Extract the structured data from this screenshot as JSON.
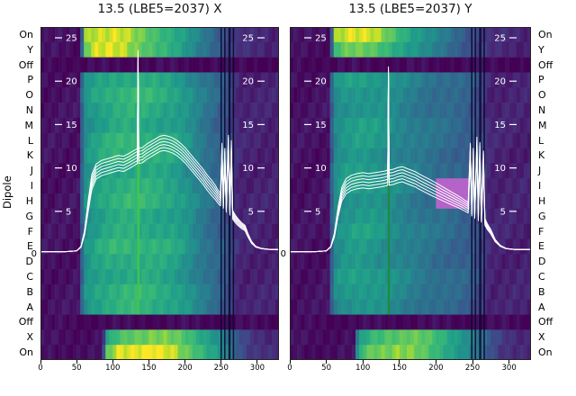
{
  "figure": {
    "ylabel": "Dipole",
    "background": "#ffffff"
  },
  "colormap": {
    "name": "viridis",
    "anchors": [
      [
        0,
        "#440154"
      ],
      [
        0.125,
        "#482878"
      ],
      [
        0.25,
        "#3e4a89"
      ],
      [
        0.375,
        "#31688e"
      ],
      [
        0.5,
        "#26828e"
      ],
      [
        0.625,
        "#1f9e89"
      ],
      [
        0.75,
        "#35b779"
      ],
      [
        0.875,
        "#6dcd59"
      ],
      [
        0.94,
        "#b4de2c"
      ],
      [
        1,
        "#fde725"
      ]
    ]
  },
  "profiles": {
    "off": [
      [
        0,
        0.02
      ],
      [
        330,
        0.02
      ]
    ],
    "body_l": [
      [
        0,
        0.05
      ],
      [
        54,
        0.05
      ],
      [
        58,
        0.4
      ],
      [
        63,
        0.58
      ],
      [
        80,
        0.65
      ],
      [
        100,
        0.7
      ],
      [
        125,
        0.72
      ],
      [
        155,
        0.7
      ],
      [
        185,
        0.65
      ],
      [
        205,
        0.57
      ],
      [
        220,
        0.48
      ],
      [
        235,
        0.41
      ],
      [
        248,
        0.35
      ],
      [
        258,
        0.3
      ],
      [
        264,
        0.22
      ],
      [
        270,
        0.15
      ],
      [
        278,
        0.11
      ],
      [
        330,
        0.1
      ]
    ],
    "body_r": [
      [
        0,
        0.05
      ],
      [
        54,
        0.05
      ],
      [
        58,
        0.38
      ],
      [
        63,
        0.55
      ],
      [
        78,
        0.6
      ],
      [
        95,
        0.62
      ],
      [
        115,
        0.6
      ],
      [
        135,
        0.56
      ],
      [
        155,
        0.51
      ],
      [
        175,
        0.46
      ],
      [
        195,
        0.42
      ],
      [
        215,
        0.39
      ],
      [
        235,
        0.36
      ],
      [
        250,
        0.32
      ],
      [
        260,
        0.25
      ],
      [
        268,
        0.16
      ],
      [
        276,
        0.11
      ],
      [
        330,
        0.1
      ]
    ],
    "on_top_l": [
      [
        0,
        0.04
      ],
      [
        56,
        0.04
      ],
      [
        60,
        0.9
      ],
      [
        70,
        0.97
      ],
      [
        110,
        0.95
      ],
      [
        140,
        0.88
      ],
      [
        165,
        0.78
      ],
      [
        185,
        0.68
      ],
      [
        205,
        0.58
      ],
      [
        225,
        0.48
      ],
      [
        242,
        0.38
      ],
      [
        255,
        0.28
      ],
      [
        265,
        0.2
      ],
      [
        275,
        0.13
      ],
      [
        330,
        0.11
      ]
    ],
    "y_top_l": [
      [
        0,
        0.04
      ],
      [
        56,
        0.04
      ],
      [
        60,
        0.84
      ],
      [
        75,
        0.92
      ],
      [
        115,
        0.9
      ],
      [
        145,
        0.81
      ],
      [
        170,
        0.71
      ],
      [
        190,
        0.61
      ],
      [
        210,
        0.51
      ],
      [
        230,
        0.42
      ],
      [
        247,
        0.32
      ],
      [
        260,
        0.22
      ],
      [
        272,
        0.14
      ],
      [
        330,
        0.11
      ]
    ],
    "x_bot_l": [
      [
        0,
        0.04
      ],
      [
        86,
        0.04
      ],
      [
        92,
        0.6
      ],
      [
        105,
        0.75
      ],
      [
        130,
        0.85
      ],
      [
        160,
        0.88
      ],
      [
        190,
        0.82
      ],
      [
        215,
        0.72
      ],
      [
        240,
        0.6
      ],
      [
        258,
        0.45
      ],
      [
        270,
        0.3
      ],
      [
        285,
        0.2
      ],
      [
        300,
        0.15
      ],
      [
        330,
        0.12
      ]
    ],
    "on_bot_l": [
      [
        0,
        0.04
      ],
      [
        86,
        0.04
      ],
      [
        92,
        0.8
      ],
      [
        110,
        0.95
      ],
      [
        150,
        0.97
      ],
      [
        185,
        0.9
      ],
      [
        215,
        0.78
      ],
      [
        240,
        0.62
      ],
      [
        258,
        0.48
      ],
      [
        270,
        0.32
      ],
      [
        285,
        0.2
      ],
      [
        330,
        0.14
      ]
    ],
    "on_top_r": [
      [
        0,
        0.04
      ],
      [
        56,
        0.04
      ],
      [
        60,
        0.88
      ],
      [
        78,
        0.95
      ],
      [
        115,
        0.9
      ],
      [
        140,
        0.8
      ],
      [
        160,
        0.68
      ],
      [
        180,
        0.57
      ],
      [
        200,
        0.48
      ],
      [
        222,
        0.4
      ],
      [
        240,
        0.32
      ],
      [
        255,
        0.24
      ],
      [
        268,
        0.16
      ],
      [
        278,
        0.12
      ],
      [
        330,
        0.11
      ]
    ],
    "y_top_r": [
      [
        0,
        0.04
      ],
      [
        56,
        0.04
      ],
      [
        60,
        0.82
      ],
      [
        80,
        0.9
      ],
      [
        118,
        0.85
      ],
      [
        145,
        0.74
      ],
      [
        168,
        0.62
      ],
      [
        190,
        0.52
      ],
      [
        212,
        0.44
      ],
      [
        232,
        0.36
      ],
      [
        250,
        0.28
      ],
      [
        264,
        0.2
      ],
      [
        276,
        0.13
      ],
      [
        330,
        0.11
      ]
    ],
    "x_bot_r": [
      [
        0,
        0.04
      ],
      [
        88,
        0.04
      ],
      [
        94,
        0.55
      ],
      [
        110,
        0.7
      ],
      [
        135,
        0.8
      ],
      [
        165,
        0.83
      ],
      [
        195,
        0.76
      ],
      [
        220,
        0.66
      ],
      [
        245,
        0.54
      ],
      [
        262,
        0.4
      ],
      [
        275,
        0.27
      ],
      [
        290,
        0.18
      ],
      [
        310,
        0.14
      ],
      [
        330,
        0.12
      ]
    ],
    "on_bot_r": [
      [
        0,
        0.04
      ],
      [
        88,
        0.04
      ],
      [
        94,
        0.75
      ],
      [
        112,
        0.92
      ],
      [
        150,
        0.95
      ],
      [
        185,
        0.86
      ],
      [
        215,
        0.73
      ],
      [
        240,
        0.58
      ],
      [
        258,
        0.44
      ],
      [
        272,
        0.3
      ],
      [
        288,
        0.19
      ],
      [
        330,
        0.13
      ]
    ]
  },
  "chart_data": [
    {
      "type": "heatmap",
      "title": "13.5 (LBE5=2037) X",
      "x_range": [
        0,
        330
      ],
      "x_ticks": [
        0,
        50,
        100,
        150,
        200,
        250,
        300
      ],
      "rows": [
        "On",
        "Y",
        "Off",
        "P",
        "O",
        "N",
        "M",
        "L",
        "K",
        "J",
        "I",
        "H",
        "G",
        "F",
        "E",
        "D",
        "C",
        "B",
        "A",
        "Off",
        "X",
        "On"
      ],
      "row_profiles": [
        "on_top_l",
        "y_top_l",
        "off",
        "body_l",
        "body_l",
        "body_l",
        "body_l",
        "body_l",
        "body_l",
        "body_l",
        "body_l",
        "body_l",
        "body_l",
        "body_l",
        "body_l",
        "body_l",
        "body_l",
        "body_l",
        "body_l",
        "off",
        "x_bot_l",
        "on_bot_l"
      ],
      "dark_stripes": [
        [
          249,
          2
        ],
        [
          254,
          2
        ],
        [
          260,
          3
        ],
        [
          266,
          2
        ]
      ],
      "overrides": [
        {
          "rows": [
            7,
            18
          ],
          "x": [
            134,
            137
          ],
          "color": "#3fc54f"
        }
      ],
      "overlay": {
        "y_range": [
          0,
          25
        ],
        "y_ticks_left": [
          25,
          20,
          15,
          10,
          5
        ],
        "y_ticks_right": [
          25,
          20,
          15,
          10,
          5
        ],
        "y_zero_label": "0",
        "trace_color": "#ffffff",
        "trace_offsets": [
          0,
          0.35,
          -0.35,
          0.7,
          -0.7,
          1.05
        ],
        "trace": [
          [
            0,
            0.35
          ],
          [
            35,
            0.35
          ],
          [
            50,
            0.45
          ],
          [
            56,
            0.9
          ],
          [
            61,
            2.5
          ],
          [
            66,
            5.5
          ],
          [
            71,
            8.2
          ],
          [
            77,
            9.4
          ],
          [
            84,
            9.8
          ],
          [
            92,
            10.0
          ],
          [
            100,
            10.2
          ],
          [
            108,
            10.4
          ],
          [
            115,
            10.3
          ],
          [
            122,
            10.6
          ],
          [
            128,
            10.9
          ],
          [
            132,
            11.1
          ],
          [
            134,
            11.2
          ],
          [
            135,
            22.5
          ],
          [
            136,
            11.2
          ],
          [
            141,
            11.3
          ],
          [
            147,
            11.7
          ],
          [
            153,
            12.0
          ],
          [
            159,
            12.3
          ],
          [
            165,
            12.6
          ],
          [
            171,
            12.7
          ],
          [
            177,
            12.6
          ],
          [
            183,
            12.4
          ],
          [
            189,
            12.1
          ],
          [
            195,
            11.7
          ],
          [
            201,
            11.2
          ],
          [
            207,
            10.6
          ],
          [
            213,
            10.0
          ],
          [
            219,
            9.4
          ],
          [
            225,
            8.8
          ],
          [
            231,
            8.1
          ],
          [
            237,
            7.5
          ],
          [
            242,
            7.0
          ],
          [
            246,
            6.5
          ],
          [
            249,
            6.2
          ],
          [
            251,
            11.8
          ],
          [
            253,
            5.9
          ],
          [
            255,
            11.2
          ],
          [
            257,
            5.4
          ],
          [
            260,
            12.7
          ],
          [
            262,
            5.0
          ],
          [
            264,
            12.1
          ],
          [
            266,
            4.5
          ],
          [
            269,
            4.1
          ],
          [
            273,
            3.7
          ],
          [
            278,
            3.3
          ],
          [
            283,
            3.0
          ],
          [
            287,
            2.2
          ],
          [
            292,
            1.4
          ],
          [
            298,
            0.9
          ],
          [
            306,
            0.7
          ],
          [
            318,
            0.6
          ],
          [
            330,
            0.6
          ]
        ]
      }
    },
    {
      "type": "heatmap",
      "title": "13.5 (LBE5=2037) Y",
      "x_range": [
        0,
        330
      ],
      "x_ticks": [
        0,
        50,
        100,
        150,
        200,
        250,
        300
      ],
      "rows": [
        "On",
        "Y",
        "Off",
        "P",
        "O",
        "N",
        "M",
        "L",
        "K",
        "J",
        "I",
        "H",
        "G",
        "F",
        "E",
        "D",
        "C",
        "B",
        "A",
        "Off",
        "X",
        "On"
      ],
      "row_profiles": [
        "on_top_r",
        "y_top_r",
        "off",
        "body_r",
        "body_r",
        "body_r",
        "body_r",
        "body_r",
        "body_r",
        "body_r",
        "body_r",
        "body_r",
        "body_r",
        "body_r",
        "body_r",
        "body_r",
        "body_r",
        "body_r",
        "body_r",
        "off",
        "x_bot_r",
        "on_bot_r"
      ],
      "dark_stripes": [
        [
          248,
          2
        ],
        [
          253,
          2
        ],
        [
          259,
          3
        ],
        [
          265,
          2
        ]
      ],
      "overrides": [
        {
          "rows": [
            10,
            18
          ],
          "x": [
            134,
            137
          ],
          "color": "#1e8a44"
        },
        {
          "rows": [
            10,
            11
          ],
          "x": [
            200,
            246
          ],
          "color": "#b464c8"
        }
      ],
      "overlay": {
        "y_range": [
          0,
          25
        ],
        "y_ticks_left": [
          25,
          20,
          15,
          10,
          5
        ],
        "y_ticks_right": [
          25,
          20,
          15,
          10,
          5
        ],
        "y_zero_label": "0",
        "trace_color": "#ffffff",
        "trace_offsets": [
          0,
          0.35,
          -0.35,
          0.7,
          -0.7,
          1.05
        ],
        "trace": [
          [
            0,
            0.35
          ],
          [
            35,
            0.35
          ],
          [
            50,
            0.45
          ],
          [
            56,
            0.9
          ],
          [
            61,
            2.2
          ],
          [
            66,
            4.8
          ],
          [
            71,
            6.8
          ],
          [
            77,
            7.7
          ],
          [
            84,
            8.1
          ],
          [
            92,
            8.3
          ],
          [
            100,
            8.4
          ],
          [
            108,
            8.3
          ],
          [
            116,
            8.4
          ],
          [
            124,
            8.5
          ],
          [
            130,
            8.6
          ],
          [
            134,
            8.7
          ],
          [
            135,
            20.6
          ],
          [
            136,
            8.7
          ],
          [
            142,
            8.8
          ],
          [
            148,
            9.0
          ],
          [
            154,
            9.1
          ],
          [
            160,
            8.9
          ],
          [
            166,
            8.7
          ],
          [
            172,
            8.5
          ],
          [
            178,
            8.2
          ],
          [
            185,
            7.9
          ],
          [
            192,
            7.6
          ],
          [
            199,
            7.3
          ],
          [
            206,
            7.0
          ],
          [
            213,
            6.7
          ],
          [
            220,
            6.4
          ],
          [
            227,
            6.1
          ],
          [
            234,
            5.8
          ],
          [
            240,
            5.5
          ],
          [
            244,
            5.3
          ],
          [
            247,
            11.8
          ],
          [
            249,
            4.9
          ],
          [
            251,
            11.2
          ],
          [
            253,
            4.6
          ],
          [
            256,
            12.5
          ],
          [
            258,
            4.3
          ],
          [
            260,
            11.9
          ],
          [
            262,
            4.1
          ],
          [
            265,
            10.9
          ],
          [
            267,
            3.7
          ],
          [
            270,
            3.2
          ],
          [
            275,
            2.6
          ],
          [
            281,
            1.6
          ],
          [
            288,
            1.0
          ],
          [
            296,
            0.7
          ],
          [
            308,
            0.6
          ],
          [
            330,
            0.6
          ]
        ]
      }
    }
  ]
}
